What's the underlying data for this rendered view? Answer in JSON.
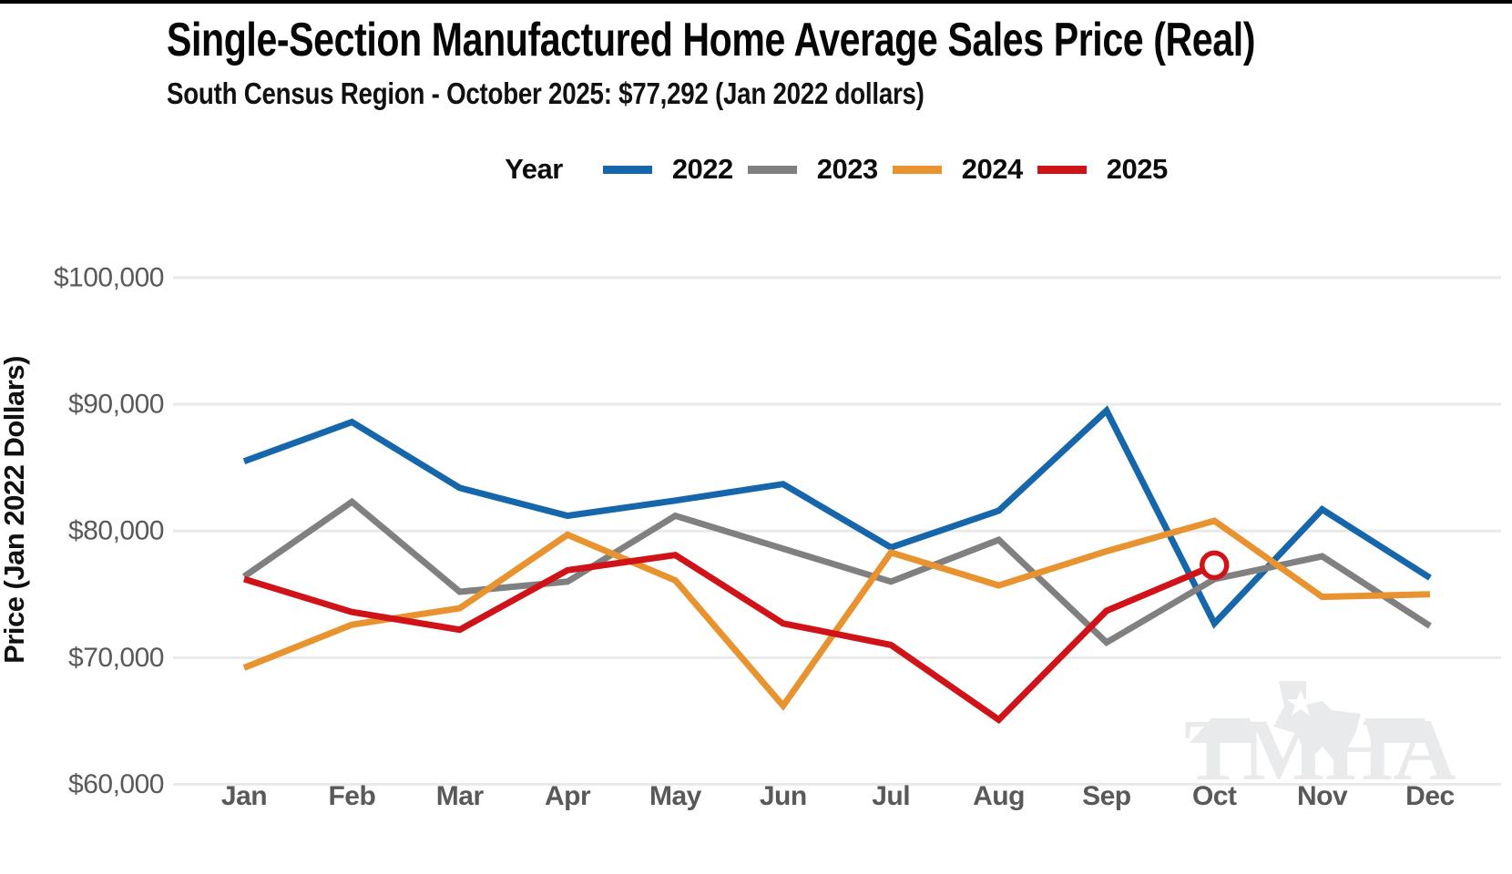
{
  "title": "Single-Section Manufactured Home Average Sales Price (Real)",
  "subtitle": "South Census Region - October 2025: $77,292 (Jan 2022 dollars)",
  "legend": {
    "title": "Year",
    "items": [
      {
        "label": "2022",
        "color": "#1566AB"
      },
      {
        "label": "2023",
        "color": "#808080"
      },
      {
        "label": "2024",
        "color": "#E8932F"
      },
      {
        "label": "2025",
        "color": "#CF1318"
      }
    ]
  },
  "watermark": "TMHA",
  "colors": {
    "gridline": "#E9E9E9",
    "axis_text": "#595959",
    "title_text": "#060606",
    "watermark": "#E8EAEC",
    "background": "#FFFFFF"
  },
  "chart_data": {
    "type": "line",
    "title": "Single-Section Manufactured Home Average Sales Price (Real)",
    "subtitle": "South Census Region - October 2025: $77,292 (Jan 2022 dollars)",
    "categories": [
      "Jan",
      "Feb",
      "Mar",
      "Apr",
      "May",
      "Jun",
      "Jul",
      "Aug",
      "Sep",
      "Oct",
      "Nov",
      "Dec"
    ],
    "xlabel": "",
    "ylabel": "Price (Jan 2022 Dollars)",
    "ylim": [
      60000,
      100000
    ],
    "yticks": [
      60000,
      70000,
      80000,
      90000,
      100000
    ],
    "ytick_labels": [
      "$60,000",
      "$70,000",
      "$80,000",
      "$90,000",
      "$100,000"
    ],
    "grid": "horizontal",
    "legend_position": "top-center",
    "series": [
      {
        "name": "2022",
        "color": "#1566AB",
        "values": [
          85500,
          88600,
          83400,
          81200,
          82400,
          83700,
          78700,
          81600,
          89500,
          72700,
          81700,
          76300
        ]
      },
      {
        "name": "2023",
        "color": "#808080",
        "values": [
          76400,
          82300,
          75200,
          76000,
          81200,
          78600,
          76000,
          79300,
          71200,
          76200,
          78000,
          72500
        ]
      },
      {
        "name": "2024",
        "color": "#E8932F",
        "values": [
          69200,
          72600,
          73900,
          79700,
          76100,
          66200,
          78300,
          75700,
          78400,
          80800,
          74800,
          75000
        ]
      },
      {
        "name": "2025",
        "color": "#CF1318",
        "values": [
          76200,
          73600,
          72200,
          76900,
          78100,
          72700,
          71000,
          65100,
          73700,
          77292,
          null,
          null
        ]
      }
    ],
    "annotations": {
      "highlighted_point": {
        "series": "2025",
        "month": "Oct",
        "value": 77292,
        "marker": "open-circle"
      }
    }
  }
}
